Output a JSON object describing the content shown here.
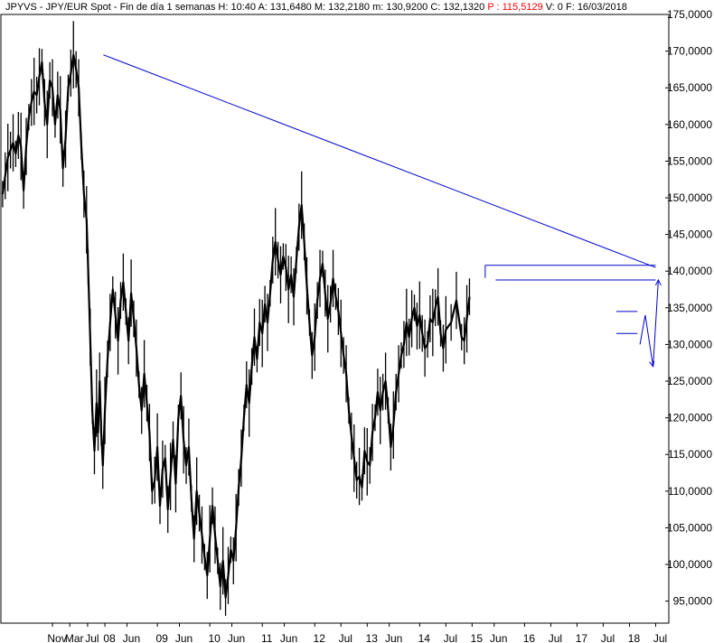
{
  "header": {
    "symbol": "JPYVS",
    "name": "JPY/EUR Spot",
    "period": "Fin de día 1 semanas",
    "h": "H: 10:40",
    "a": "A: 131,6480",
    "m": "M: 132,2180",
    "mn": "m: 130,9200",
    "c": "C: 132,1320",
    "p": "P : 115,5129",
    "v": "V: 0",
    "f": "F: 16/03/2018"
  },
  "colors": {
    "price": "#000000",
    "drawing": "#0000cc",
    "background": "#ffffff",
    "axis": "#000000",
    "highlight": "#ff0000"
  },
  "chart_data": {
    "type": "line",
    "ylim": [
      92000,
      175000
    ],
    "y_ticks": [
      95000,
      100000,
      105000,
      110000,
      115000,
      120000,
      125000,
      130000,
      135000,
      140000,
      145000,
      150000,
      155000,
      160000,
      165000,
      170000,
      175000
    ],
    "y_tick_labels": [
      "95,0000",
      "100,0000",
      "105,0000",
      "110,0000",
      "115,0000",
      "120,0000",
      "125,0000",
      "130,0000",
      "135,0000",
      "140,0000",
      "145,0000",
      "150,0000",
      "155,0000",
      "160,0000",
      "165,0000",
      "170,0000",
      "175,0000"
    ],
    "x_ticks": [
      {
        "label": "Nov",
        "x": 0.0
      },
      {
        "label": "Mar",
        "x": 0.33
      },
      {
        "label": "Jul",
        "x": 0.67
      },
      {
        "label": "08",
        "x": 1.0
      },
      {
        "label": "Jun",
        "x": 1.42
      },
      {
        "label": "09",
        "x": 2.0
      },
      {
        "label": "Jun",
        "x": 2.42
      },
      {
        "label": "10",
        "x": 3.0
      },
      {
        "label": "Jun",
        "x": 3.42
      },
      {
        "label": "11",
        "x": 4.0
      },
      {
        "label": "Jun",
        "x": 4.42
      },
      {
        "label": "12",
        "x": 5.0
      },
      {
        "label": "Jul",
        "x": 5.5
      },
      {
        "label": "13",
        "x": 6.0
      },
      {
        "label": "Jun",
        "x": 6.42
      },
      {
        "label": "14",
        "x": 7.0
      },
      {
        "label": "Jul",
        "x": 7.5
      },
      {
        "label": "15",
        "x": 8.0
      },
      {
        "label": "Jun",
        "x": 8.42
      },
      {
        "label": "16",
        "x": 9.0
      },
      {
        "label": "Jul",
        "x": 9.5
      },
      {
        "label": "17",
        "x": 10.0
      },
      {
        "label": "Jul",
        "x": 10.5
      },
      {
        "label": "18",
        "x": 11.0
      },
      {
        "label": "Jul",
        "x": 11.5
      }
    ],
    "series": [
      {
        "values": [
          [
            -0.95,
            150500
          ],
          [
            -0.9,
            153000
          ],
          [
            -0.85,
            155500
          ],
          [
            -0.8,
            156500
          ],
          [
            -0.75,
            157500
          ],
          [
            -0.7,
            156000
          ],
          [
            -0.65,
            158500
          ],
          [
            -0.6,
            157000
          ],
          [
            -0.55,
            151000
          ],
          [
            -0.5,
            157000
          ],
          [
            -0.45,
            161000
          ],
          [
            -0.4,
            163000
          ],
          [
            -0.35,
            164500
          ],
          [
            -0.3,
            164000
          ],
          [
            -0.25,
            166500
          ],
          [
            -0.2,
            168500
          ],
          [
            -0.15,
            163000
          ],
          [
            -0.1,
            160000
          ],
          [
            -0.05,
            166000
          ],
          [
            0.0,
            165000
          ],
          [
            0.05,
            160000
          ],
          [
            0.1,
            164000
          ],
          [
            0.15,
            162000
          ],
          [
            0.2,
            154000
          ],
          [
            0.25,
            158000
          ],
          [
            0.3,
            165000
          ],
          [
            0.35,
            167000
          ],
          [
            0.4,
            169500
          ],
          [
            0.45,
            167500
          ],
          [
            0.5,
            165000
          ],
          [
            0.55,
            157000
          ],
          [
            0.6,
            150500
          ],
          [
            0.65,
            147000
          ],
          [
            0.68,
            140500
          ],
          [
            0.72,
            131000
          ],
          [
            0.76,
            121000
          ],
          [
            0.8,
            115500
          ],
          [
            0.84,
            122000
          ],
          [
            0.87,
            118000
          ],
          [
            0.9,
            125000
          ],
          [
            0.93,
            118000
          ],
          [
            0.96,
            113500
          ],
          [
            1.0,
            121000
          ],
          [
            1.05,
            128000
          ],
          [
            1.1,
            133000
          ],
          [
            1.15,
            137500
          ],
          [
            1.2,
            134000
          ],
          [
            1.25,
            130500
          ],
          [
            1.3,
            136000
          ],
          [
            1.35,
            138500
          ],
          [
            1.4,
            134500
          ],
          [
            1.45,
            130500
          ],
          [
            1.5,
            137000
          ],
          [
            1.55,
            133500
          ],
          [
            1.6,
            129500
          ],
          [
            1.65,
            124500
          ],
          [
            1.7,
            121000
          ],
          [
            1.75,
            126000
          ],
          [
            1.8,
            122000
          ],
          [
            1.85,
            118000
          ],
          [
            1.9,
            110000
          ],
          [
            1.95,
            111500
          ],
          [
            2.0,
            116000
          ],
          [
            2.05,
            108000
          ],
          [
            2.1,
            113000
          ],
          [
            2.15,
            114500
          ],
          [
            2.2,
            107500
          ],
          [
            2.25,
            112000
          ],
          [
            2.3,
            117000
          ],
          [
            2.35,
            111000
          ],
          [
            2.4,
            120000
          ],
          [
            2.45,
            123000
          ],
          [
            2.5,
            117000
          ],
          [
            2.55,
            113500
          ],
          [
            2.6,
            116000
          ],
          [
            2.65,
            109000
          ],
          [
            2.7,
            103500
          ],
          [
            2.75,
            110000
          ],
          [
            2.8,
            107000
          ],
          [
            2.85,
            104000
          ],
          [
            2.9,
            101000
          ],
          [
            2.95,
            98500
          ],
          [
            3.0,
            103500
          ],
          [
            3.05,
            108000
          ],
          [
            3.1,
            104000
          ],
          [
            3.15,
            100500
          ],
          [
            3.2,
            97000
          ],
          [
            3.25,
            100500
          ],
          [
            3.3,
            95500
          ],
          [
            3.35,
            98500
          ],
          [
            3.4,
            102000
          ],
          [
            3.45,
            100500
          ],
          [
            3.5,
            105000
          ],
          [
            3.55,
            110500
          ],
          [
            3.6,
            114500
          ],
          [
            3.65,
            120000
          ],
          [
            3.7,
            124500
          ],
          [
            3.75,
            122000
          ],
          [
            3.8,
            127000
          ],
          [
            3.85,
            131000
          ],
          [
            3.9,
            128000
          ],
          [
            3.95,
            133000
          ],
          [
            4.0,
            131500
          ],
          [
            4.05,
            135500
          ],
          [
            4.1,
            133000
          ],
          [
            4.15,
            137000
          ],
          [
            4.2,
            141500
          ],
          [
            4.25,
            144000
          ],
          [
            4.3,
            141500
          ],
          [
            4.35,
            139500
          ],
          [
            4.4,
            142000
          ],
          [
            4.45,
            140500
          ],
          [
            4.5,
            137500
          ],
          [
            4.55,
            139500
          ],
          [
            4.6,
            136500
          ],
          [
            4.65,
            141500
          ],
          [
            4.7,
            146000
          ],
          [
            4.75,
            149000
          ],
          [
            4.8,
            144000
          ],
          [
            4.85,
            138000
          ],
          [
            4.9,
            133000
          ],
          [
            4.95,
            128500
          ],
          [
            5.0,
            131000
          ],
          [
            5.05,
            136000
          ],
          [
            5.1,
            139000
          ],
          [
            5.15,
            141000
          ],
          [
            5.2,
            137000
          ],
          [
            5.25,
            133500
          ],
          [
            5.3,
            135500
          ],
          [
            5.35,
            139000
          ],
          [
            5.4,
            136500
          ],
          [
            5.45,
            134500
          ],
          [
            5.5,
            131500
          ],
          [
            5.55,
            128500
          ],
          [
            5.6,
            126000
          ],
          [
            5.65,
            121000
          ],
          [
            5.7,
            117500
          ],
          [
            5.75,
            114500
          ],
          [
            5.8,
            111500
          ],
          [
            5.85,
            112000
          ],
          [
            5.9,
            110500
          ],
          [
            5.95,
            115500
          ],
          [
            6.0,
            114000
          ],
          [
            6.05,
            113500
          ],
          [
            6.1,
            118000
          ],
          [
            6.15,
            120000
          ],
          [
            6.2,
            123500
          ],
          [
            6.25,
            121000
          ],
          [
            6.3,
            123500
          ],
          [
            6.35,
            125000
          ],
          [
            6.4,
            121000
          ],
          [
            6.45,
            116000
          ],
          [
            6.5,
            119000
          ],
          [
            6.55,
            123500
          ],
          [
            6.6,
            126000
          ],
          [
            6.65,
            128500
          ],
          [
            6.7,
            130000
          ],
          [
            6.75,
            133000
          ],
          [
            6.8,
            131000
          ],
          [
            6.85,
            133500
          ],
          [
            6.9,
            135000
          ],
          [
            6.95,
            132500
          ],
          [
            7.0,
            134000
          ],
          [
            7.05,
            131500
          ],
          [
            7.1,
            129500
          ],
          [
            7.15,
            130000
          ],
          [
            7.2,
            133500
          ],
          [
            7.25,
            133000
          ],
          [
            7.3,
            135000
          ],
          [
            7.35,
            136500
          ],
          [
            7.4,
            131500
          ],
          [
            7.45,
            129500
          ],
          [
            7.5,
            132000
          ],
          [
            7.6,
            133000
          ],
          [
            7.7,
            136000
          ],
          [
            7.8,
            131000
          ],
          [
            7.85,
            130500
          ],
          [
            7.9,
            133500
          ],
          [
            7.95,
            136500
          ]
        ]
      }
    ],
    "annotations": {
      "trendline": [
        [
          0.97,
          169500
        ],
        [
          11.5,
          140500
        ]
      ],
      "horizontal_lines": [
        {
          "y": 140800,
          "x": [
            8.25,
            11.5
          ]
        },
        {
          "y": 138800,
          "x": [
            8.45,
            11.5
          ]
        },
        {
          "y": 134500,
          "x": [
            10.75,
            11.15
          ]
        },
        {
          "y": 131500,
          "x": [
            10.75,
            11.15
          ]
        }
      ],
      "projection": [
        [
          11.2,
          130000
        ],
        [
          11.3,
          134000
        ],
        [
          11.45,
          127000
        ],
        [
          11.55,
          138800
        ]
      ]
    }
  }
}
